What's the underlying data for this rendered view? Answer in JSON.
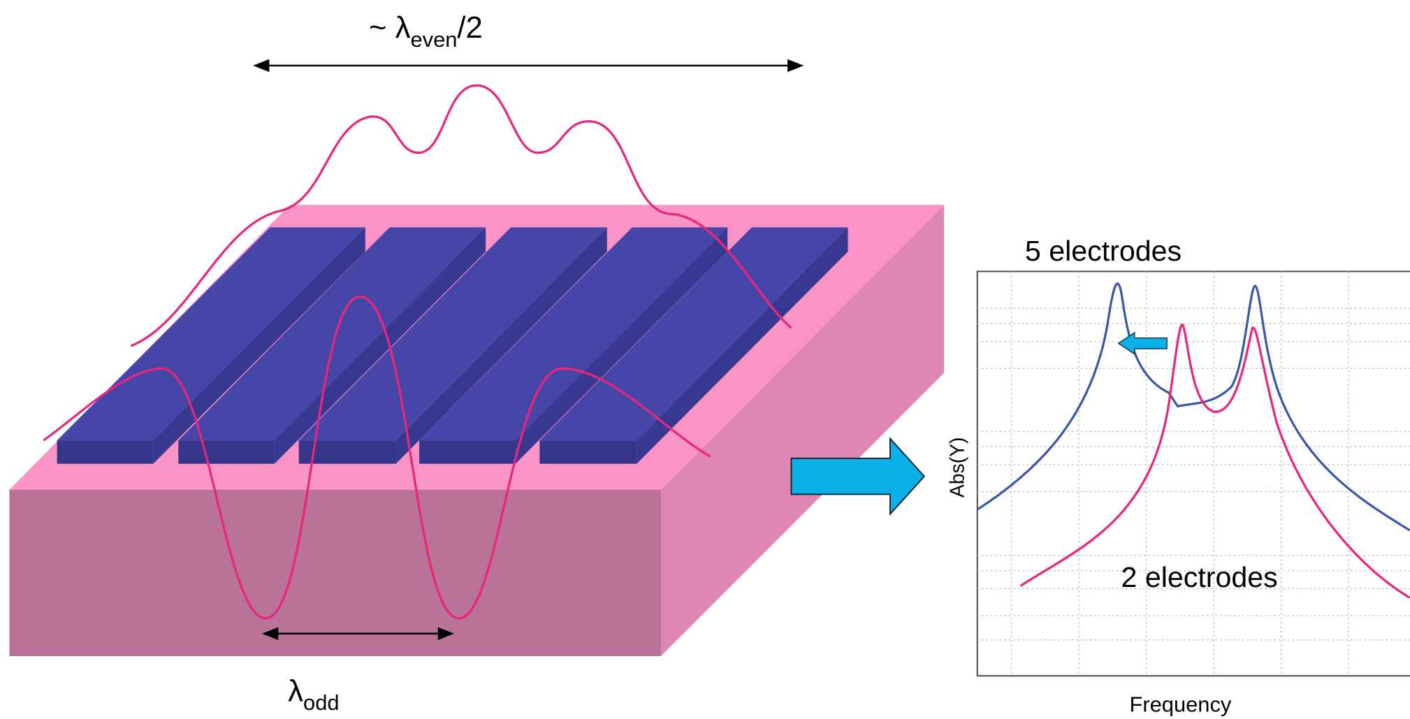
{
  "top_label": {
    "prefix": "~ λ",
    "sub": "even",
    "suffix": "/2"
  },
  "bottom_label": {
    "prefix": "λ",
    "sub": "odd"
  },
  "plot": {
    "curve_label_top": "5 electrodes",
    "curve_label_bottom": "2 electrodes",
    "y_axis_label": "Abs(Y)",
    "x_axis_label": "Frequency"
  }
}
